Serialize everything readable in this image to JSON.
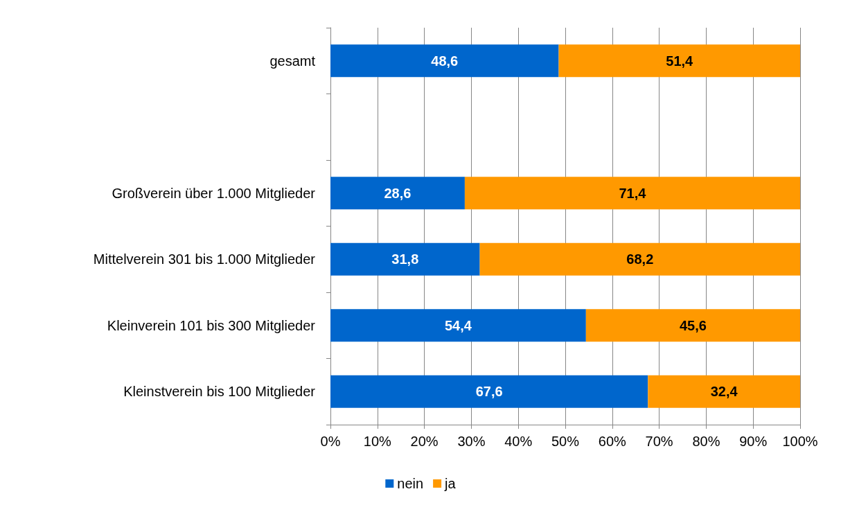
{
  "chart_data": {
    "type": "bar",
    "orientation": "horizontal",
    "stacked": true,
    "categories": [
      "gesamt",
      null,
      "Großverein über 1.000 Mitglieder",
      "Mittelverein 301 bis 1.000 Mitglieder",
      "Kleinverein 101 bis 300 Mitglieder",
      "Kleinstverein bis 100 Mitglieder"
    ],
    "series": [
      {
        "name": "nein",
        "color": "#0066cc",
        "values": [
          48.6,
          null,
          28.6,
          31.8,
          54.4,
          67.6
        ],
        "value_labels": [
          "48,6",
          null,
          "28,6",
          "31,8",
          "54,4",
          "67,6"
        ]
      },
      {
        "name": "ja",
        "color": "#ff9900",
        "values": [
          51.4,
          null,
          71.4,
          68.2,
          45.6,
          32.4
        ],
        "value_labels": [
          "51,4",
          null,
          "71,4",
          "68,2",
          "45,6",
          "32,4"
        ]
      }
    ],
    "xlim": [
      0,
      100
    ],
    "xticks": [
      {
        "value": 0,
        "label": "0%"
      },
      {
        "value": 10,
        "label": "10%"
      },
      {
        "value": 20,
        "label": "20%"
      },
      {
        "value": 30,
        "label": "30%"
      },
      {
        "value": 40,
        "label": "40%"
      },
      {
        "value": 50,
        "label": "50%"
      },
      {
        "value": 60,
        "label": "60%"
      },
      {
        "value": 70,
        "label": "70%"
      },
      {
        "value": 80,
        "label": "80%"
      },
      {
        "value": 90,
        "label": "90%"
      },
      {
        "value": 100,
        "label": "100%"
      }
    ],
    "grid": "x",
    "legend": "bottom"
  }
}
